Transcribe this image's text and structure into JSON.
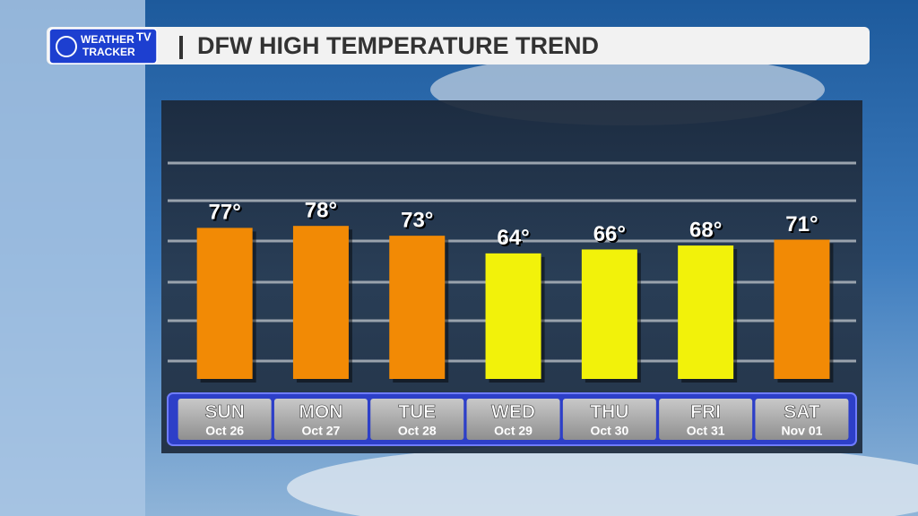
{
  "logo": {
    "line1": "WEATHER",
    "line2": "TRACKER",
    "badge": "TV"
  },
  "chart_data": {
    "type": "bar",
    "title": "DFW HIGH TEMPERATURE TREND",
    "categories": [
      "SUN",
      "MON",
      "TUE",
      "WED",
      "THU",
      "FRI",
      "SAT"
    ],
    "dates": [
      "Oct 26",
      "Oct 27",
      "Oct 28",
      "Oct 29",
      "Oct 30",
      "Oct 31",
      "Nov 01"
    ],
    "values": [
      77,
      78,
      73,
      64,
      66,
      68,
      71
    ],
    "value_labels": [
      "77°",
      "78°",
      "73°",
      "64°",
      "66°",
      "68°",
      "71°"
    ],
    "colors": [
      "#f28a05",
      "#f28a05",
      "#f28a05",
      "#f2f20a",
      "#f2f20a",
      "#f2f20a",
      "#f28a05"
    ],
    "ylim": [
      0,
      100
    ]
  }
}
